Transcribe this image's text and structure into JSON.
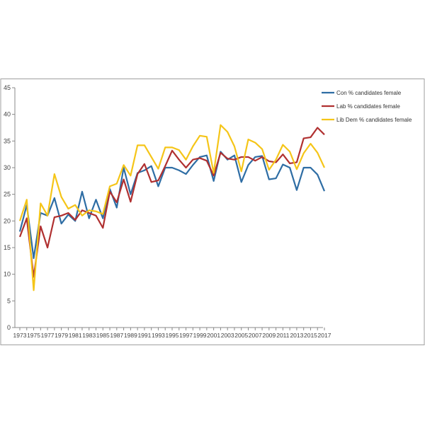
{
  "chart_data": {
    "type": "line",
    "title": "",
    "xlabel": "",
    "ylabel": "",
    "ylim": [
      0,
      45
    ],
    "yticks": [
      0,
      5,
      10,
      15,
      20,
      25,
      30,
      35,
      40,
      45
    ],
    "xlim": [
      1973,
      2017
    ],
    "xticks": [
      1973,
      1975,
      1977,
      1979,
      1981,
      1983,
      1985,
      1987,
      1989,
      1991,
      1993,
      1995,
      1997,
      1999,
      2001,
      2003,
      2005,
      2007,
      2009,
      2011,
      2013,
      2015,
      2017
    ],
    "grid": false,
    "legend_position": "top-right",
    "series": [
      {
        "name": "Con % candidates female",
        "color": "#2e6da4",
        "points": [
          [
            1973,
            18.0
          ],
          [
            1974,
            23.0
          ],
          [
            1975,
            13.0
          ],
          [
            1976,
            21.5
          ],
          [
            1977,
            21.0
          ],
          [
            1978,
            24.3
          ],
          [
            1979,
            19.5
          ],
          [
            1980,
            21.2
          ],
          [
            1981,
            20.0
          ],
          [
            1982,
            25.5
          ],
          [
            1983,
            20.5
          ],
          [
            1984,
            24.0
          ],
          [
            1985,
            20.5
          ],
          [
            1986,
            26.0
          ],
          [
            1987,
            22.5
          ],
          [
            1988,
            30.0
          ],
          [
            1989,
            25.0
          ],
          [
            1990,
            29.0
          ],
          [
            1991,
            29.5
          ],
          [
            1992,
            30.3
          ],
          [
            1993,
            26.5
          ],
          [
            1994,
            30.0
          ],
          [
            1995,
            30.0
          ],
          [
            1996,
            29.5
          ],
          [
            1997,
            28.8
          ],
          [
            1998,
            30.5
          ],
          [
            1999,
            32.0
          ],
          [
            2000,
            32.3
          ],
          [
            2001,
            27.5
          ],
          [
            2002,
            33.0
          ],
          [
            2003,
            31.5
          ],
          [
            2004,
            32.3
          ],
          [
            2005,
            27.3
          ],
          [
            2006,
            30.5
          ],
          [
            2007,
            32.0
          ],
          [
            2008,
            32.2
          ],
          [
            2009,
            27.8
          ],
          [
            2010,
            28.0
          ],
          [
            2011,
            30.6
          ],
          [
            2012,
            30.0
          ],
          [
            2013,
            25.8
          ],
          [
            2014,
            30.0
          ],
          [
            2015,
            30.0
          ],
          [
            2016,
            28.7
          ],
          [
            2017,
            25.6
          ]
        ]
      },
      {
        "name": "Lab % candidates female",
        "color": "#b03030",
        "points": [
          [
            1973,
            17.0
          ],
          [
            1974,
            20.5
          ],
          [
            1975,
            9.5
          ],
          [
            1976,
            19.0
          ],
          [
            1977,
            15.0
          ],
          [
            1978,
            20.7
          ],
          [
            1979,
            21.0
          ],
          [
            1980,
            21.5
          ],
          [
            1981,
            20.2
          ],
          [
            1982,
            22.0
          ],
          [
            1983,
            21.5
          ],
          [
            1984,
            21.0
          ],
          [
            1985,
            18.7
          ],
          [
            1986,
            25.5
          ],
          [
            1987,
            23.5
          ],
          [
            1988,
            27.8
          ],
          [
            1989,
            23.6
          ],
          [
            1990,
            28.8
          ],
          [
            1991,
            30.7
          ],
          [
            1992,
            27.3
          ],
          [
            1993,
            27.6
          ],
          [
            1994,
            30.3
          ],
          [
            1995,
            33.2
          ],
          [
            1996,
            31.5
          ],
          [
            1997,
            30.0
          ],
          [
            1998,
            31.5
          ],
          [
            1999,
            31.8
          ],
          [
            2000,
            31.3
          ],
          [
            2001,
            28.5
          ],
          [
            2002,
            32.8
          ],
          [
            2003,
            31.7
          ],
          [
            2004,
            31.5
          ],
          [
            2005,
            32.0
          ],
          [
            2006,
            32.0
          ],
          [
            2007,
            31.3
          ],
          [
            2008,
            32.0
          ],
          [
            2009,
            31.2
          ],
          [
            2010,
            31.0
          ],
          [
            2011,
            32.5
          ],
          [
            2012,
            30.8
          ],
          [
            2013,
            31.0
          ],
          [
            2014,
            35.5
          ],
          [
            2015,
            35.7
          ],
          [
            2016,
            37.5
          ],
          [
            2017,
            36.2
          ]
        ]
      },
      {
        "name": "Lib Dem % candidates female",
        "color": "#f5c518",
        "points": [
          [
            1973,
            20.0
          ],
          [
            1974,
            24.0
          ],
          [
            1975,
            7.0
          ],
          [
            1976,
            23.3
          ],
          [
            1977,
            21.0
          ],
          [
            1978,
            28.8
          ],
          [
            1979,
            24.5
          ],
          [
            1980,
            22.3
          ],
          [
            1981,
            23.0
          ],
          [
            1982,
            21.0
          ],
          [
            1983,
            22.0
          ],
          [
            1984,
            21.8
          ],
          [
            1985,
            21.3
          ],
          [
            1986,
            26.5
          ],
          [
            1987,
            27.0
          ],
          [
            1988,
            30.5
          ],
          [
            1989,
            28.5
          ],
          [
            1990,
            34.2
          ],
          [
            1991,
            34.2
          ],
          [
            1992,
            32.0
          ],
          [
            1993,
            29.8
          ],
          [
            1994,
            33.8
          ],
          [
            1995,
            33.8
          ],
          [
            1996,
            33.3
          ],
          [
            1997,
            31.5
          ],
          [
            1998,
            34.0
          ],
          [
            1999,
            36.0
          ],
          [
            2000,
            35.8
          ],
          [
            2001,
            29.0
          ],
          [
            2002,
            38.0
          ],
          [
            2003,
            36.7
          ],
          [
            2004,
            34.0
          ],
          [
            2005,
            29.3
          ],
          [
            2006,
            35.3
          ],
          [
            2007,
            34.7
          ],
          [
            2008,
            33.5
          ],
          [
            2009,
            29.6
          ],
          [
            2010,
            31.5
          ],
          [
            2011,
            34.3
          ],
          [
            2012,
            33.0
          ],
          [
            2013,
            29.7
          ],
          [
            2014,
            32.7
          ],
          [
            2015,
            34.5
          ],
          [
            2016,
            32.8
          ],
          [
            2017,
            30.0
          ]
        ]
      }
    ]
  }
}
